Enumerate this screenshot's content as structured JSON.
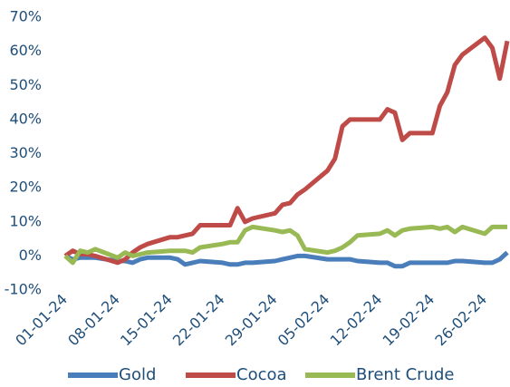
{
  "chart_data": {
    "type": "line",
    "x": [
      "01-01-24",
      "02-01-24",
      "03-01-24",
      "04-01-24",
      "05-01-24",
      "08-01-24",
      "09-01-24",
      "10-01-24",
      "11-01-24",
      "12-01-24",
      "15-01-24",
      "16-01-24",
      "17-01-24",
      "18-01-24",
      "19-01-24",
      "22-01-24",
      "23-01-24",
      "24-01-24",
      "25-01-24",
      "26-01-24",
      "29-01-24",
      "30-01-24",
      "31-01-24",
      "01-02-24",
      "02-02-24",
      "05-02-24",
      "06-02-24",
      "07-02-24",
      "08-02-24",
      "09-02-24",
      "12-02-24",
      "13-02-24",
      "14-02-24",
      "15-02-24",
      "16-02-24",
      "19-02-24",
      "20-02-24",
      "21-02-24",
      "22-02-24",
      "23-02-24",
      "26-02-24",
      "27-02-24",
      "28-02-24",
      "29-02-24"
    ],
    "series": [
      {
        "name": "Gold",
        "color": "#4a7ebb",
        "values": [
          0,
          -1,
          -0.5,
          -0.5,
          -0.5,
          -1.5,
          -1.5,
          -2,
          -1,
          -0.5,
          -0.5,
          -1,
          -2.5,
          -2,
          -1.5,
          -2,
          -2.5,
          -2.5,
          -2,
          -2,
          -1.5,
          -1,
          -0.5,
          0,
          0,
          -1,
          -1,
          -1,
          -1,
          -1.5,
          -2,
          -2,
          -3,
          -3,
          -2,
          -2,
          -2,
          -2,
          -1.5,
          -1.5,
          -2,
          -2,
          -1,
          1
        ]
      },
      {
        "name": "Cocoa",
        "color": "#be4b48",
        "values": [
          0,
          1.5,
          0.5,
          0.5,
          0,
          -2,
          -1,
          1,
          2.5,
          3.5,
          5.5,
          5.5,
          6,
          6.5,
          9,
          9,
          9,
          14,
          10,
          11,
          12.5,
          15,
          15.5,
          18,
          19.5,
          25,
          28.5,
          38,
          40,
          40,
          40,
          43,
          42,
          34,
          36,
          36,
          44,
          48,
          56,
          59,
          64,
          61,
          52,
          63
        ]
      },
      {
        "name": "Brent Crude",
        "color": "#98b954",
        "values": [
          0,
          -2,
          1.5,
          1,
          2,
          -0.5,
          1,
          0,
          0.5,
          1,
          1.5,
          1.5,
          1.5,
          1,
          2.5,
          3.5,
          4,
          4,
          7.5,
          8.5,
          7.5,
          7,
          7.5,
          6,
          2,
          1,
          1.5,
          2.5,
          4,
          6,
          6.5,
          7.5,
          6,
          7.5,
          8,
          8.5,
          8,
          8.5,
          7,
          8.5,
          6.5,
          8.5,
          8.5,
          8.5
        ]
      }
    ],
    "xlim": [
      "01-01-24",
      "29-02-24"
    ],
    "xticks": [
      "01-01-24",
      "08-01-24",
      "15-01-24",
      "22-01-24",
      "29-01-24",
      "05-02-24",
      "12-02-24",
      "19-02-24",
      "26-02-24"
    ],
    "ylim": [
      -10,
      70
    ],
    "yticks": [
      {
        "value": -10,
        "label": "-10%"
      },
      {
        "value": 0,
        "label": "0%"
      },
      {
        "value": 10,
        "label": "10%"
      },
      {
        "value": 20,
        "label": "20%"
      },
      {
        "value": 30,
        "label": "30%"
      },
      {
        "value": 40,
        "label": "40%"
      },
      {
        "value": 50,
        "label": "50%"
      },
      {
        "value": 60,
        "label": "60%"
      },
      {
        "value": 70,
        "label": "70%"
      }
    ],
    "grid": false,
    "legend": "bottom"
  }
}
